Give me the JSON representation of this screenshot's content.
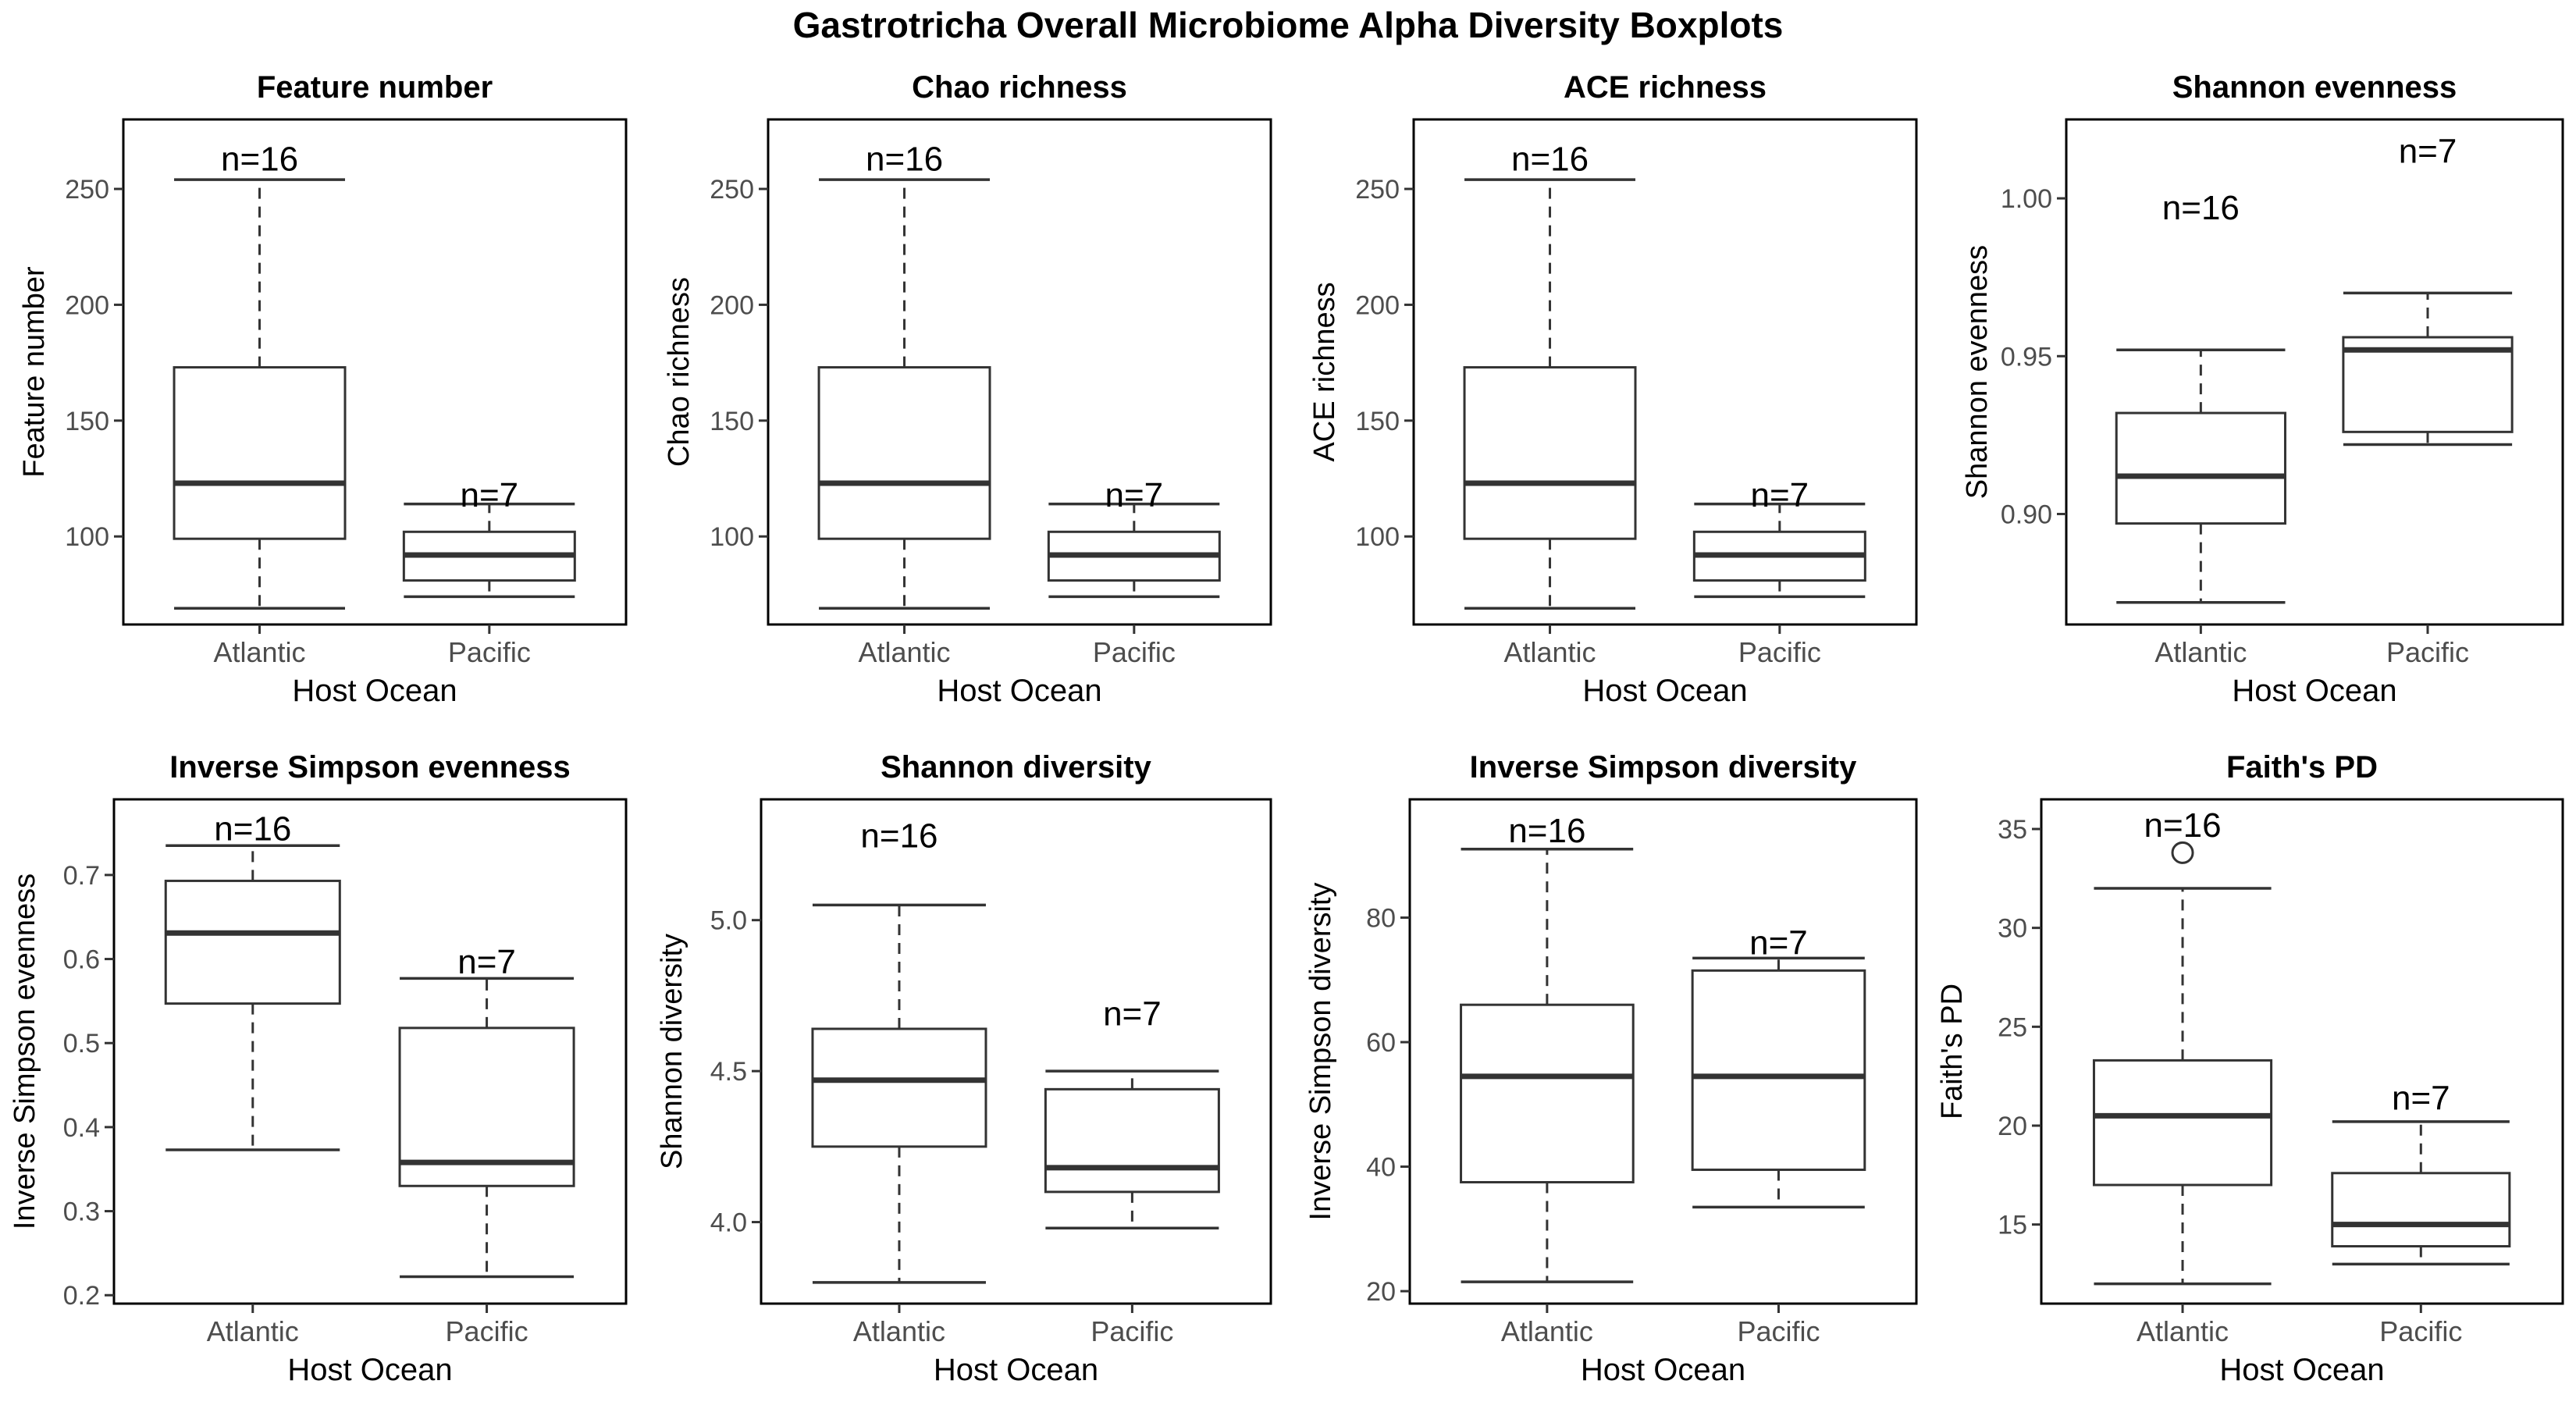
{
  "figure": {
    "title": "Gastrotricha Overall Microbiome Alpha Diversity Boxplots"
  },
  "colors": {
    "ink": "#333333",
    "frame": "#000000",
    "text": "#000000",
    "tick_text": "#4d4d4d"
  },
  "chart_data": [
    {
      "type": "box",
      "title": "Feature number",
      "xlabel": "Host Ocean",
      "ylabel": "Feature number",
      "categories": [
        "Atlantic",
        "Pacific"
      ],
      "ylim": [
        62,
        280
      ],
      "yticks": [
        100,
        150,
        200,
        250
      ],
      "boxes": [
        {
          "group": "Atlantic",
          "whisker_low": 69,
          "q1": 99,
          "median": 123,
          "q3": 173,
          "whisker_high": 254,
          "outliers": [],
          "n_label": "n=16",
          "label_y": 263
        },
        {
          "group": "Pacific",
          "whisker_low": 74,
          "q1": 81,
          "median": 92,
          "q3": 102,
          "whisker_high": 114,
          "outliers": [],
          "n_label": "n=7",
          "label_y": 118
        }
      ]
    },
    {
      "type": "box",
      "title": "Chao richness",
      "xlabel": "Host Ocean",
      "ylabel": "Chao richness",
      "categories": [
        "Atlantic",
        "Pacific"
      ],
      "ylim": [
        62,
        280
      ],
      "yticks": [
        100,
        150,
        200,
        250
      ],
      "boxes": [
        {
          "group": "Atlantic",
          "whisker_low": 69,
          "q1": 99,
          "median": 123,
          "q3": 173,
          "whisker_high": 254,
          "outliers": [],
          "n_label": "n=16",
          "label_y": 263
        },
        {
          "group": "Pacific",
          "whisker_low": 74,
          "q1": 81,
          "median": 92,
          "q3": 102,
          "whisker_high": 114,
          "outliers": [],
          "n_label": "n=7",
          "label_y": 118
        }
      ]
    },
    {
      "type": "box",
      "title": "ACE richness",
      "xlabel": "Host Ocean",
      "ylabel": "ACE richness",
      "categories": [
        "Atlantic",
        "Pacific"
      ],
      "ylim": [
        62,
        280
      ],
      "yticks": [
        100,
        150,
        200,
        250
      ],
      "boxes": [
        {
          "group": "Atlantic",
          "whisker_low": 69,
          "q1": 99,
          "median": 123,
          "q3": 173,
          "whisker_high": 254,
          "outliers": [],
          "n_label": "n=16",
          "label_y": 263
        },
        {
          "group": "Pacific",
          "whisker_low": 74,
          "q1": 81,
          "median": 92,
          "q3": 102,
          "whisker_high": 114,
          "outliers": [],
          "n_label": "n=7",
          "label_y": 118
        }
      ]
    },
    {
      "type": "box",
      "title": "Shannon evenness",
      "xlabel": "Host Ocean",
      "ylabel": "Shannon evenness",
      "categories": [
        "Atlantic",
        "Pacific"
      ],
      "ylim": [
        0.865,
        1.025
      ],
      "yticks": [
        0.9,
        0.95,
        1.0
      ],
      "tick_decimals": 2,
      "boxes": [
        {
          "group": "Atlantic",
          "whisker_low": 0.872,
          "q1": 0.897,
          "median": 0.912,
          "q3": 0.932,
          "whisker_high": 0.952,
          "outliers": [],
          "n_label": "n=16",
          "label_y": 0.997
        },
        {
          "group": "Pacific",
          "whisker_low": 0.922,
          "q1": 0.926,
          "median": 0.952,
          "q3": 0.956,
          "whisker_high": 0.97,
          "outliers": [],
          "n_label": "n=7",
          "label_y": 1.015
        }
      ]
    },
    {
      "type": "box",
      "title": "Inverse Simpson evenness",
      "xlabel": "Host Ocean",
      "ylabel": "Inverse Simpson evenness",
      "categories": [
        "Atlantic",
        "Pacific"
      ],
      "ylim": [
        0.19,
        0.79
      ],
      "yticks": [
        0.2,
        0.3,
        0.4,
        0.5,
        0.6,
        0.7
      ],
      "tick_decimals": 1,
      "boxes": [
        {
          "group": "Atlantic",
          "whisker_low": 0.373,
          "q1": 0.547,
          "median": 0.631,
          "q3": 0.693,
          "whisker_high": 0.735,
          "outliers": [],
          "n_label": "n=16",
          "label_y": 0.755
        },
        {
          "group": "Pacific",
          "whisker_low": 0.222,
          "q1": 0.33,
          "median": 0.358,
          "q3": 0.518,
          "whisker_high": 0.577,
          "outliers": [],
          "n_label": "n=7",
          "label_y": 0.597
        }
      ]
    },
    {
      "type": "box",
      "title": "Shannon diversity",
      "xlabel": "Host Ocean",
      "ylabel": "Shannon diversity",
      "categories": [
        "Atlantic",
        "Pacific"
      ],
      "ylim": [
        3.73,
        5.4
      ],
      "yticks": [
        4.0,
        4.5,
        5.0
      ],
      "tick_decimals": 1,
      "boxes": [
        {
          "group": "Atlantic",
          "whisker_low": 3.8,
          "q1": 4.25,
          "median": 4.47,
          "q3": 4.64,
          "whisker_high": 5.05,
          "outliers": [],
          "n_label": "n=16",
          "label_y": 5.28
        },
        {
          "group": "Pacific",
          "whisker_low": 3.98,
          "q1": 4.1,
          "median": 4.18,
          "q3": 4.44,
          "whisker_high": 4.5,
          "outliers": [],
          "n_label": "n=7",
          "label_y": 4.69
        }
      ]
    },
    {
      "type": "box",
      "title": "Inverse Simpson diversity",
      "xlabel": "Host Ocean",
      "ylabel": "Inverse Simpson diversity",
      "categories": [
        "Atlantic",
        "Pacific"
      ],
      "ylim": [
        18,
        99
      ],
      "yticks": [
        20,
        40,
        60,
        80
      ],
      "boxes": [
        {
          "group": "Atlantic",
          "whisker_low": 21.5,
          "q1": 37.5,
          "median": 54.5,
          "q3": 66,
          "whisker_high": 91,
          "outliers": [],
          "n_label": "n=16",
          "label_y": 94
        },
        {
          "group": "Pacific",
          "whisker_low": 33.5,
          "q1": 39.5,
          "median": 54.5,
          "q3": 71.5,
          "whisker_high": 73.5,
          "outliers": [],
          "n_label": "n=7",
          "label_y": 76
        }
      ]
    },
    {
      "type": "box",
      "title": "Faith's PD",
      "xlabel": "Host Ocean",
      "ylabel": "Faith's PD",
      "categories": [
        "Atlantic",
        "Pacific"
      ],
      "ylim": [
        11,
        36.5
      ],
      "yticks": [
        15,
        20,
        25,
        30,
        35
      ],
      "boxes": [
        {
          "group": "Atlantic",
          "whisker_low": 12,
          "q1": 17,
          "median": 20.5,
          "q3": 23.3,
          "whisker_high": 32,
          "outliers": [
            33.8
          ],
          "n_label": "n=16",
          "label_y": 35.2
        },
        {
          "group": "Pacific",
          "whisker_low": 13,
          "q1": 13.9,
          "median": 15,
          "q3": 17.6,
          "whisker_high": 20.2,
          "outliers": [],
          "n_label": "n=7",
          "label_y": 21.4
        }
      ]
    }
  ]
}
